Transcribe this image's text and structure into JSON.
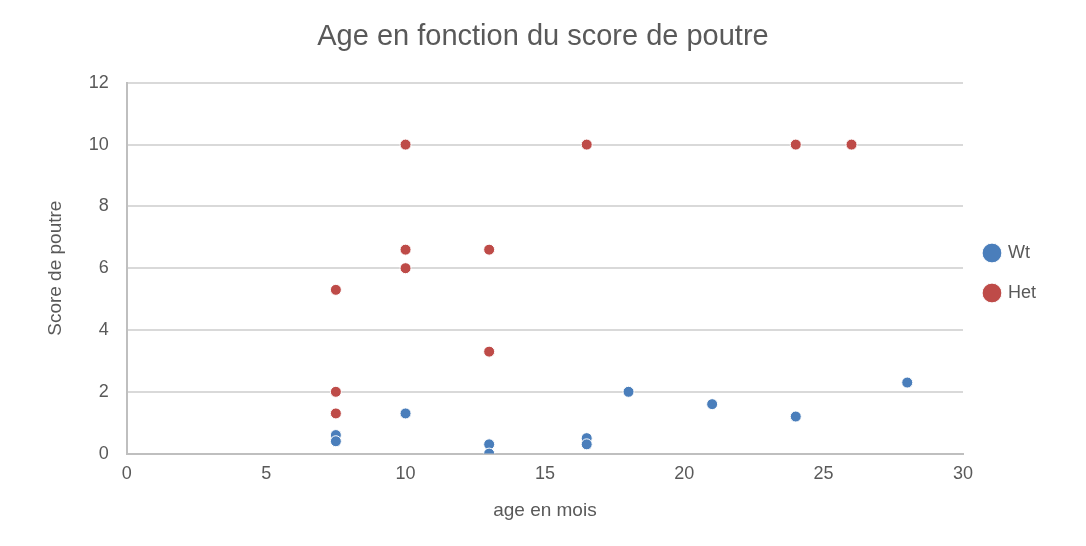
{
  "chart_data": {
    "type": "scatter",
    "title": "Age en fonction du score de poutre",
    "xlabel": "age en mois",
    "ylabel": "Score de poutre",
    "xlim": [
      0,
      30
    ],
    "xticks": [
      0,
      5,
      10,
      15,
      20,
      25,
      30
    ],
    "ylim": [
      0,
      12
    ],
    "yticks": [
      0,
      2,
      4,
      6,
      8,
      10,
      12
    ],
    "grid": "y",
    "legend": "right",
    "marker": "circle",
    "series": [
      {
        "name": "Wt",
        "color": "#4a7ebb",
        "x": [
          7.5,
          7.5,
          10,
          13,
          13,
          16.5,
          16.5,
          18,
          21,
          24,
          28
        ],
        "values": [
          0.6,
          0.4,
          1.3,
          0.3,
          0,
          0.5,
          0.3,
          2,
          1.6,
          1.2,
          2.3
        ]
      },
      {
        "name": "Het",
        "color": "#be4b48",
        "x": [
          7.5,
          7.5,
          7.5,
          10,
          10,
          10,
          13,
          13,
          16.5,
          24,
          26
        ],
        "values": [
          5.3,
          2,
          1.3,
          10,
          6.6,
          6,
          6.6,
          3.3,
          10,
          10,
          10
        ]
      }
    ]
  }
}
